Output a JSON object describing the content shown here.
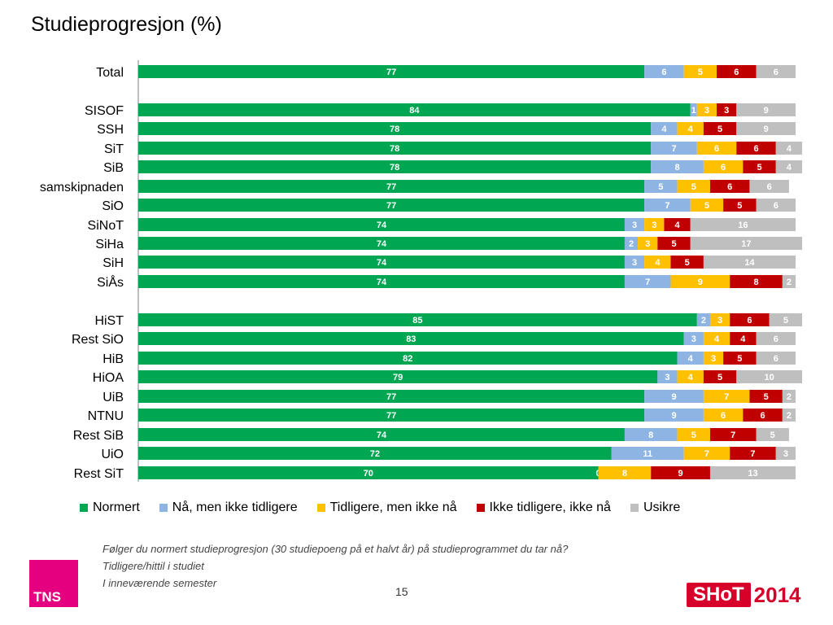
{
  "title": "Studieprogresjon (%)",
  "chart_data": {
    "type": "bar",
    "orientation": "horizontal",
    "stacked": true,
    "xlim": [
      0,
      100
    ],
    "categories": [
      "Total",
      "SISOF",
      "SSH",
      "SiT",
      "SiB",
      "samskipnaden",
      "SiO",
      "SiNoT",
      "SiHa",
      "SiH",
      "SiÅs",
      "HiST",
      "Rest SiO",
      "HiB",
      "HiOA",
      "UiB",
      "NTNU",
      "Rest SiB",
      "UiO",
      "Rest SiT"
    ],
    "series": [
      {
        "name": "Normert",
        "color": "#00a651",
        "values": [
          77,
          84,
          78,
          78,
          78,
          77,
          77,
          74,
          74,
          74,
          74,
          85,
          83,
          82,
          79,
          77,
          77,
          74,
          72,
          70
        ]
      },
      {
        "name": "Nå, men ikke tidligere",
        "color": "#8db4e2",
        "values": [
          6,
          1,
          4,
          7,
          8,
          5,
          7,
          3,
          2,
          3,
          7,
          2,
          3,
          4,
          3,
          9,
          9,
          8,
          11,
          0
        ]
      },
      {
        "name": "Tidligere, men ikke nå",
        "color": "#ffc000",
        "values": [
          5,
          3,
          4,
          6,
          6,
          5,
          5,
          3,
          3,
          4,
          9,
          3,
          4,
          3,
          4,
          7,
          6,
          5,
          7,
          8
        ]
      },
      {
        "name": "Ikke tidligere, ikke nå",
        "color": "#c00000",
        "values": [
          6,
          3,
          5,
          6,
          5,
          6,
          5,
          4,
          5,
          5,
          8,
          6,
          4,
          5,
          5,
          5,
          6,
          7,
          7,
          9
        ]
      },
      {
        "name": "Usikre",
        "color": "#bfbfbf",
        "values": [
          6,
          9,
          9,
          4,
          4,
          6,
          6,
          16,
          17,
          14,
          2,
          5,
          6,
          6,
          10,
          2,
          2,
          5,
          3,
          13
        ]
      }
    ],
    "grid": false,
    "legend_position": "bottom"
  },
  "legend": {
    "normert": "Normert",
    "naa": "Nå, men ikke tidligere",
    "tidligere": "Tidligere, men ikke nå",
    "ikke": "Ikke tidligere, ikke nå",
    "usikre": "Usikre"
  },
  "notes": [
    "Følger du normert studieprogresjon (30 studiepoeng på et halvt år) på studieprogrammet du tar nå?",
    "Tidligere/hittil i studiet",
    "I inneværende semester"
  ],
  "page_number": "15",
  "logos": {
    "tns": "TNS",
    "shot": "SHoT",
    "shot_year": "2014"
  }
}
